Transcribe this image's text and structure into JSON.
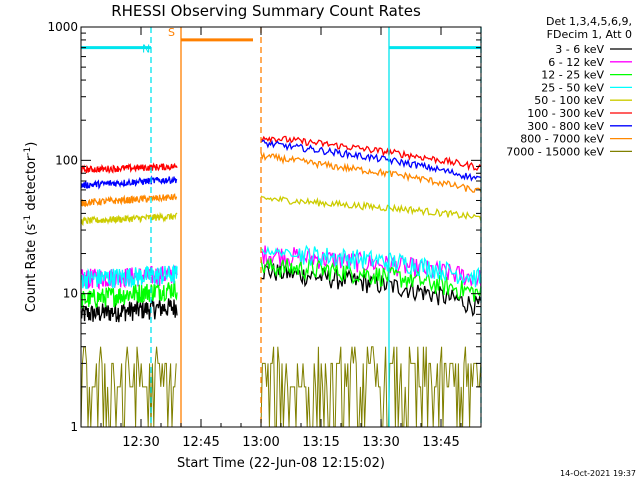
{
  "chart_data": {
    "type": "line",
    "title": "RHESSI Observing Summary Count Rates",
    "xlabel": "Start Time (22-Jun-08 12:15:02)",
    "ylabel_main": "Count Rate (s",
    "ylabel_sup1": "-1",
    "ylabel_mid": " detector",
    "ylabel_sup2": "-1",
    "ylabel_end": ")",
    "y_scale": "log",
    "ylim": [
      1,
      1000
    ],
    "xlim_minutes": [
      0,
      100
    ],
    "x_ticks": [
      {
        "t": 15,
        "label": "12:30"
      },
      {
        "t": 30,
        "label": "12:45"
      },
      {
        "t": 45,
        "label": "13:00"
      },
      {
        "t": 60,
        "label": "13:15"
      },
      {
        "t": 75,
        "label": "13:30"
      },
      {
        "t": 90,
        "label": "13:45"
      }
    ],
    "y_ticks": [
      {
        "v": 1,
        "label": "1"
      },
      {
        "v": 10,
        "label": "10"
      },
      {
        "v": 100,
        "label": "100"
      },
      {
        "v": 1000,
        "label": "1000"
      }
    ],
    "legend_header": [
      "Det 1,3,4,5,6,9,",
      "FDecim 1, Att 0"
    ],
    "legend_placement": "right",
    "gaps_minutes": [
      [
        24,
        45
      ]
    ],
    "series": [
      {
        "name": "3 - 6 keV",
        "color": "#000000",
        "before": [
          7,
          8
        ],
        "after": [
          15,
          13,
          11,
          8
        ]
      },
      {
        "name": "6 - 12 keV",
        "color": "#ff00ff",
        "before": [
          13,
          14
        ],
        "after": [
          20,
          18,
          16,
          13
        ]
      },
      {
        "name": "12 - 25 keV",
        "color": "#00ff00",
        "before": [
          9,
          11
        ],
        "after": [
          16,
          15,
          13,
          10
        ]
      },
      {
        "name": "25 - 50 keV",
        "color": "#00ffff",
        "before": [
          13,
          14
        ],
        "after": [
          21,
          19,
          17,
          13
        ]
      },
      {
        "name": "50 - 100 keV",
        "color": "#cccc00",
        "before": [
          35,
          38
        ],
        "after": [
          52,
          47,
          43,
          37
        ]
      },
      {
        "name": "100 - 300 keV",
        "color": "#ff0000",
        "before": [
          85,
          90
        ],
        "after": [
          150,
          130,
          110,
          88
        ]
      },
      {
        "name": "300 - 800 keV",
        "color": "#0000ff",
        "before": [
          65,
          72
        ],
        "after": [
          135,
          115,
          95,
          72
        ]
      },
      {
        "name": "800 - 7000 keV",
        "color": "#ff8800",
        "before": [
          48,
          53
        ],
        "after": [
          108,
          90,
          76,
          58
        ]
      },
      {
        "name": "7000 - 15000 keV",
        "color": "#808000",
        "before": [],
        "after": []
      }
    ],
    "annotations": [
      {
        "type": "night",
        "label": "N",
        "color": "#00e5ee",
        "spans": [
          [
            0,
            17.5
          ],
          [
            77,
            100
          ]
        ],
        "level": 700
      },
      {
        "type": "saa",
        "label": "S",
        "color": "#ff8000",
        "spans": [
          [
            25,
            43
          ]
        ],
        "level": 800
      }
    ],
    "vlines": [
      {
        "t": 17.5,
        "color": "#00e5ee",
        "style": "dashed"
      },
      {
        "t": 77,
        "color": "#00e5ee",
        "style": "solid"
      },
      {
        "t": 100,
        "color": "#00e5ee",
        "style": "dashed"
      },
      {
        "t": 25,
        "color": "#ff8000",
        "style": "solid"
      },
      {
        "t": 45,
        "color": "#ff8000",
        "style": "dashed"
      }
    ]
  },
  "footer": {
    "timestamp": "14-Oct-2021 19:37"
  }
}
